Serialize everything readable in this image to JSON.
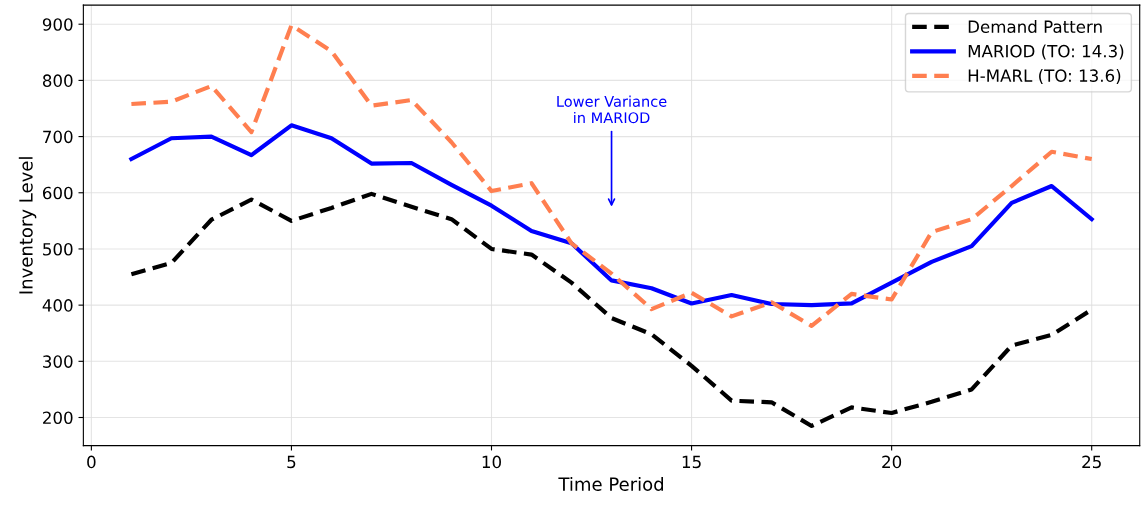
{
  "chart_data": {
    "type": "line",
    "xlabel": "Time Period",
    "ylabel": "Inventory Level",
    "x": [
      1,
      2,
      3,
      4,
      5,
      6,
      7,
      8,
      9,
      10,
      11,
      12,
      13,
      14,
      15,
      16,
      17,
      18,
      19,
      20,
      21,
      22,
      23,
      24,
      25
    ],
    "series": [
      {
        "name": "Demand Pattern",
        "color": "#000000",
        "line_style": "dashed",
        "values": [
          455,
          475,
          552,
          588,
          550,
          573,
          598,
          575,
          553,
          500,
          490,
          440,
          377,
          348,
          292,
          230,
          227,
          185,
          218,
          208,
          228,
          250,
          328,
          347,
          392
        ]
      },
      {
        "name": "MARIOD (TO: 14.3)",
        "color": "#0000ff",
        "line_style": "solid",
        "values": [
          660,
          697,
          700,
          667,
          720,
          697,
          652,
          653,
          614,
          577,
          532,
          510,
          444,
          430,
          403,
          418,
          402,
          400,
          403,
          440,
          477,
          505,
          582,
          612,
          553
        ]
      },
      {
        "name": "H-MARL (TO: 13.6)",
        "color": "#ff7f50",
        "line_style": "dashed",
        "values": [
          758,
          762,
          790,
          708,
          898,
          852,
          755,
          765,
          690,
          603,
          617,
          510,
          456,
          393,
          422,
          380,
          405,
          363,
          420,
          410,
          530,
          553,
          612,
          673,
          660
        ]
      }
    ],
    "annotations": [
      "Lower Variance\nin MARIOD"
    ],
    "xlim": [
      -0.2,
      26.2
    ],
    "ylim": [
      150,
      934
    ],
    "xticks": [
      0,
      5,
      10,
      15,
      20,
      25
    ],
    "yticks": [
      200,
      300,
      400,
      500,
      600,
      700,
      800,
      900
    ],
    "grid": true,
    "legend": "top right"
  }
}
